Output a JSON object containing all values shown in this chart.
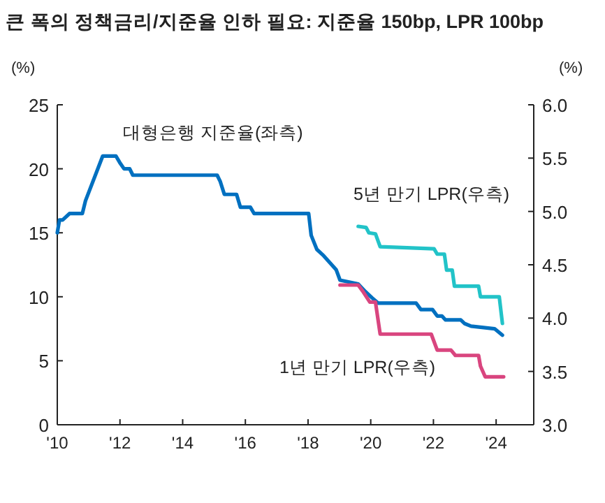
{
  "chart_data": {
    "type": "line",
    "title": "큰 폭의 정책금리/지준율 인하 필요: 지준율 150bp, LPR 100bp",
    "ylabel": "(%)",
    "y2label": "(%)",
    "xlim": [
      2010,
      2025.2
    ],
    "xticks": [
      {
        "value": 2010,
        "label": "'10"
      },
      {
        "value": 2012,
        "label": "'12"
      },
      {
        "value": 2014,
        "label": "'14"
      },
      {
        "value": 2016,
        "label": "'16"
      },
      {
        "value": 2018,
        "label": "'18"
      },
      {
        "value": 2020,
        "label": "'20"
      },
      {
        "value": 2022,
        "label": "'22"
      },
      {
        "value": 2024,
        "label": "'24"
      }
    ],
    "ylim": [
      0,
      25
    ],
    "yticks": [
      0,
      5,
      10,
      15,
      20,
      25
    ],
    "y2lim": [
      3.0,
      6.0
    ],
    "y2ticks": [
      {
        "value": 3,
        "label": "3.0"
      },
      {
        "value": 3.5,
        "label": "3.5"
      },
      {
        "value": 4,
        "label": "4.0"
      },
      {
        "value": 4.5,
        "label": "4.5"
      },
      {
        "value": 5,
        "label": "5.0"
      },
      {
        "value": 5.5,
        "label": "5.5"
      },
      {
        "value": 6,
        "label": "6.0"
      }
    ],
    "grid": false,
    "legend": false,
    "line_style": "solid",
    "marker": "none",
    "series": [
      {
        "name": "대형은행 지준율(좌측)",
        "color": "#0070c0",
        "x": [
          2010.0,
          2010.07,
          2010.17,
          2010.39,
          2010.8,
          2010.9,
          2011.45,
          2011.87,
          2011.99,
          2012.13,
          2012.31,
          2012.41,
          2015.1,
          2015.2,
          2015.33,
          2015.72,
          2015.84,
          2016.16,
          2016.28,
          2018.02,
          2018.1,
          2018.28,
          2018.5,
          2018.72,
          2018.9,
          2019.02,
          2019.6,
          2019.83,
          2020.05,
          2020.24,
          2021.45,
          2021.6,
          2021.97,
          2022.12,
          2022.27,
          2022.38,
          2022.87,
          2023.0,
          2023.2,
          2023.95,
          2024.2
        ],
        "values": [
          15.0,
          16.0,
          16.0,
          16.5,
          16.5,
          17.5,
          21.0,
          21.0,
          20.5,
          20.0,
          20.0,
          19.5,
          19.5,
          19.0,
          18.0,
          18.0,
          17.0,
          17.0,
          16.5,
          16.5,
          14.8,
          13.7,
          13.2,
          12.6,
          12.1,
          11.3,
          11.0,
          10.4,
          9.9,
          9.5,
          9.5,
          9.0,
          9.0,
          8.5,
          8.5,
          8.2,
          8.2,
          7.9,
          7.7,
          7.5,
          7.0
        ]
      },
      {
        "name": "5년 만기 LPR(우측)",
        "color": "#22c3c8",
        "axis": "y2",
        "x": [
          2019.6,
          2019.85,
          2019.94,
          2020.15,
          2020.3,
          2022.02,
          2022.12,
          2022.35,
          2022.42,
          2022.6,
          2022.67,
          2023.44,
          2023.5,
          2024.1,
          2024.2
        ],
        "values": [
          4.86,
          4.85,
          4.8,
          4.79,
          4.67,
          4.65,
          4.6,
          4.6,
          4.45,
          4.45,
          4.3,
          4.3,
          4.2,
          4.2,
          3.95
        ]
      },
      {
        "name": "1년 만기 LPR(우측)",
        "color": "#d9457f",
        "axis": "y2",
        "x": [
          2019.02,
          2019.6,
          2019.75,
          2019.97,
          2020.15,
          2020.3,
          2021.93,
          2022.12,
          2022.56,
          2022.7,
          2023.44,
          2023.5,
          2023.65,
          2024.24
        ],
        "values": [
          4.31,
          4.31,
          4.25,
          4.15,
          4.15,
          3.85,
          3.85,
          3.7,
          3.7,
          3.65,
          3.65,
          3.55,
          3.45,
          3.45
        ]
      }
    ]
  }
}
